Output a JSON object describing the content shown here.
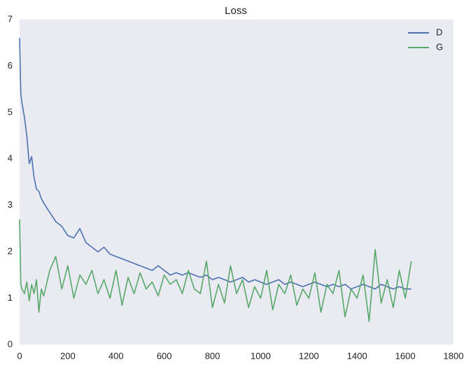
{
  "chart_data": {
    "type": "line",
    "title": "Loss",
    "x": [
      0,
      5,
      10,
      20,
      30,
      40,
      50,
      60,
      70,
      80,
      90,
      100,
      125,
      150,
      175,
      200,
      225,
      250,
      275,
      300,
      325,
      350,
      375,
      400,
      425,
      450,
      475,
      500,
      525,
      550,
      575,
      600,
      625,
      650,
      675,
      700,
      725,
      750,
      775,
      800,
      825,
      850,
      875,
      900,
      925,
      950,
      975,
      1000,
      1025,
      1050,
      1075,
      1100,
      1125,
      1150,
      1175,
      1200,
      1225,
      1250,
      1275,
      1300,
      1325,
      1350,
      1375,
      1400,
      1425,
      1450,
      1475,
      1500,
      1525,
      1550,
      1575,
      1600,
      1625
    ],
    "series": [
      {
        "name": "D",
        "color": "#4c72b0",
        "values": [
          6.6,
          5.4,
          5.2,
          4.9,
          4.5,
          3.9,
          4.05,
          3.6,
          3.35,
          3.3,
          3.15,
          3.05,
          2.85,
          2.65,
          2.55,
          2.35,
          2.3,
          2.5,
          2.2,
          2.1,
          2.0,
          2.1,
          1.95,
          1.9,
          1.85,
          1.8,
          1.75,
          1.7,
          1.65,
          1.6,
          1.7,
          1.6,
          1.5,
          1.55,
          1.5,
          1.55,
          1.5,
          1.45,
          1.5,
          1.4,
          1.45,
          1.4,
          1.35,
          1.4,
          1.45,
          1.35,
          1.4,
          1.35,
          1.3,
          1.35,
          1.4,
          1.3,
          1.35,
          1.3,
          1.25,
          1.3,
          1.35,
          1.3,
          1.25,
          1.3,
          1.25,
          1.3,
          1.2,
          1.25,
          1.3,
          1.25,
          1.2,
          1.3,
          1.25,
          1.2,
          1.25,
          1.2,
          1.2
        ]
      },
      {
        "name": "G",
        "color": "#55a868",
        "values": [
          2.7,
          1.3,
          1.2,
          1.1,
          1.35,
          0.95,
          1.3,
          1.1,
          1.4,
          0.7,
          1.2,
          1.05,
          1.6,
          1.9,
          1.2,
          1.7,
          1.0,
          1.5,
          1.3,
          1.6,
          1.1,
          1.4,
          1.0,
          1.6,
          0.85,
          1.45,
          1.1,
          1.55,
          1.2,
          1.35,
          1.05,
          1.5,
          1.3,
          1.4,
          1.1,
          1.6,
          1.2,
          1.1,
          1.8,
          0.8,
          1.3,
          0.9,
          1.7,
          1.1,
          1.4,
          0.8,
          1.25,
          1.0,
          1.6,
          0.75,
          1.3,
          1.1,
          1.5,
          0.85,
          1.2,
          1.0,
          1.55,
          0.7,
          1.3,
          1.1,
          1.6,
          0.6,
          1.2,
          1.0,
          1.5,
          0.5,
          2.05,
          0.9,
          1.4,
          0.8,
          1.6,
          1.0,
          1.8
        ]
      }
    ],
    "xlim": [
      0,
      1800
    ],
    "xticks": [
      0,
      200,
      400,
      600,
      800,
      1000,
      1200,
      1400,
      1600,
      1800
    ],
    "ylim": [
      0,
      7
    ],
    "yticks": [
      0,
      1,
      2,
      3,
      4,
      5,
      6,
      7
    ],
    "grid": false,
    "legend": "upper right",
    "background": "#eaeaf2"
  }
}
